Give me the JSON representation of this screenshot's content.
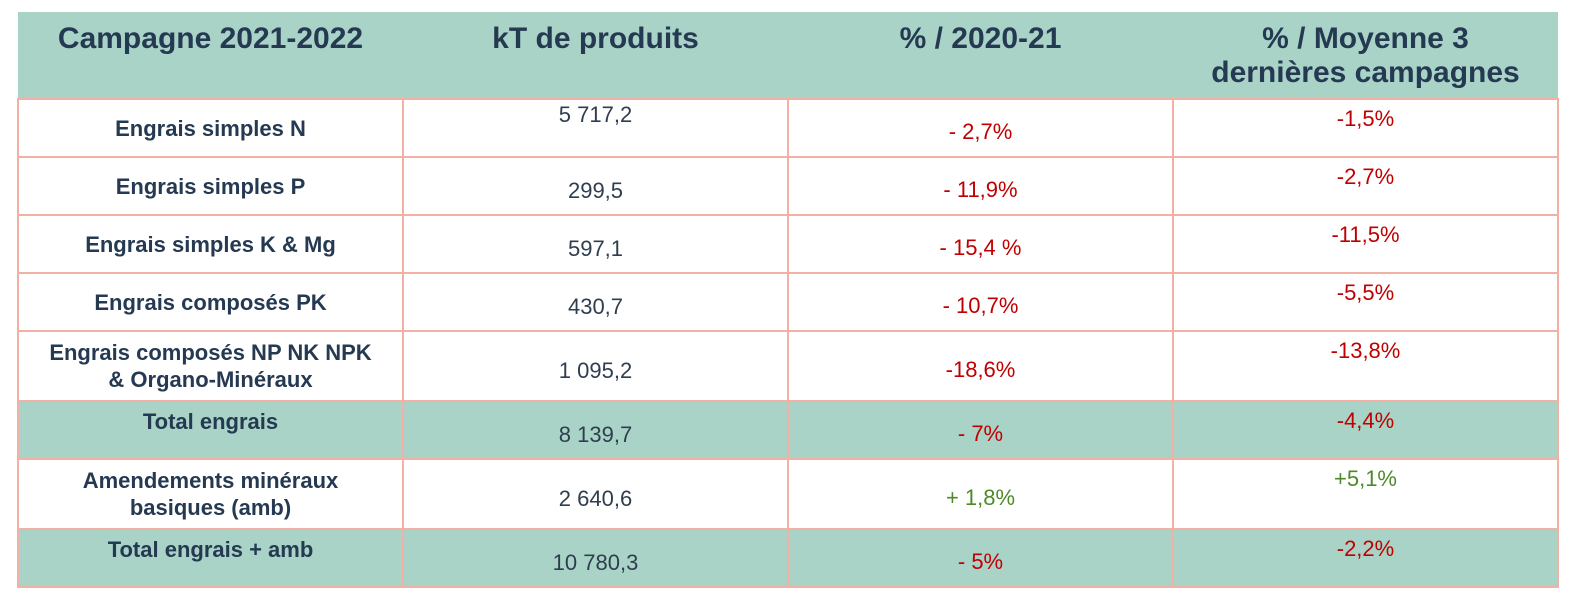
{
  "header": {
    "col1": "Campagne 2021-2022",
    "col2": "kT de produits",
    "col3": "% / 2020-21",
    "col4_line1": "% / Moyenne 3",
    "col4_line2": "dernières campagnes"
  },
  "rows": [
    {
      "label_line1": "Engrais simples N",
      "label_line2": "",
      "kt": "5 717,2",
      "pct": "- 2,7%",
      "avg": "-1,5%"
    },
    {
      "label_line1": "Engrais simples P",
      "label_line2": "",
      "kt": "299,5",
      "pct": "- 11,9%",
      "avg": "-2,7%"
    },
    {
      "label_line1": "Engrais simples K & Mg",
      "label_line2": "",
      "kt": "597,1",
      "pct": "- 15,4 %",
      "avg": "-11,5%"
    },
    {
      "label_line1": "Engrais composés PK",
      "label_line2": "",
      "kt": "430,7",
      "pct": "- 10,7%",
      "avg": "-5,5%"
    },
    {
      "label_line1": "Engrais composés NP NK NPK",
      "label_line2": "& Organo-Minéraux",
      "kt": "1 095,2",
      "pct": "-18,6%",
      "avg": "-13,8%"
    },
    {
      "label_line1": "Total engrais",
      "label_line2": "",
      "kt": "8 139,7",
      "pct": "- 7%",
      "avg": "-4,4%"
    },
    {
      "label_line1": "Amendements minéraux",
      "label_line2": "basiques (amb)",
      "kt": "2 640,6",
      "pct": "+ 1,8%",
      "avg": "+5,1%"
    },
    {
      "label_line1": "Total engrais + amb",
      "label_line2": "",
      "kt": "10 780,3",
      "pct": "- 5%",
      "avg": "-2,2%"
    }
  ],
  "colors": {
    "header_bg": "#a8d3c6",
    "border": "#f3b0a5",
    "text_dark": "#253a52",
    "negative": "#c00000",
    "positive": "#4e8a2a"
  }
}
